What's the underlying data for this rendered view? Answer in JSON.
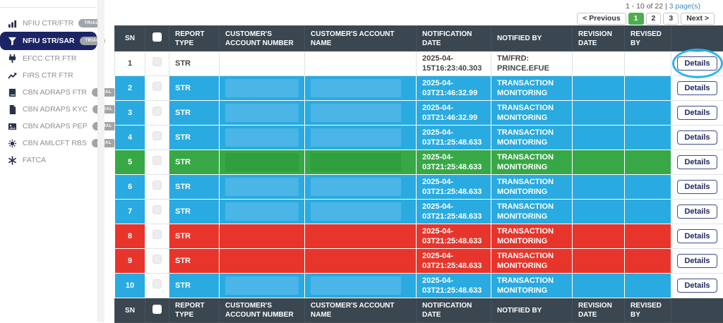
{
  "colors": {
    "header_bg": "#3a4650",
    "blue_row": "#29aae1",
    "blue_redaction": "#4ab5e6",
    "green_row": "#38a847",
    "green_redaction": "#2f9e3d",
    "red_row": "#e8352b",
    "nav_active_bg": "#1b2566",
    "trial_badge_bg": "#a1a5a8",
    "page_active_bg": "#4bae4f",
    "annotation_blue": "#2cb5ed"
  },
  "sidebar": {
    "trial_badge": "TRIAL",
    "items": [
      {
        "label": "NFIU CTR/FTR",
        "icon": "bar-chart-icon",
        "trial": true,
        "active": false
      },
      {
        "label": "NFIU STR/SAR",
        "icon": "filter-icon",
        "trial": true,
        "active": true
      },
      {
        "label": "EFCC CTR FTR",
        "icon": "plug-icon",
        "trial": false,
        "active": false
      },
      {
        "label": "FIRS CTR FTR",
        "icon": "trend-icon",
        "trial": false,
        "active": false
      },
      {
        "label": "CBN ADRAPS FTR",
        "icon": "book-icon",
        "trial": true,
        "active": false
      },
      {
        "label": "CBN ADRAPS KYC",
        "icon": "file-icon",
        "trial": true,
        "active": false
      },
      {
        "label": "CBN ADRAPS PEP",
        "icon": "image-icon",
        "trial": true,
        "active": false
      },
      {
        "label": "CBN AMLCFT RBS",
        "icon": "gear-icon",
        "trial": true,
        "active": false
      },
      {
        "label": "FATCA",
        "icon": "asterisk-icon",
        "trial": false,
        "active": false
      }
    ]
  },
  "pagination": {
    "summary_prefix": "1 - 10 of 22 | ",
    "pages_text": "3 page(s)",
    "prev_label": "< Previous",
    "pages": [
      "1",
      "2",
      "3"
    ],
    "active_page": "1",
    "next_label": "Next >"
  },
  "table": {
    "headers": [
      "SN",
      "",
      "REPORT TYPE",
      "CUSTOMER'S ACCOUNT NUMBER",
      "CUSTOMER'S ACCOUNT NAME",
      "NOTIFICATION DATE",
      "NOTIFIED BY",
      "REVISION DATE",
      "REVISED BY",
      ""
    ],
    "details_label": "Details",
    "rows": [
      {
        "sn": "1",
        "report_type": "STR",
        "account_number": "",
        "account_name": "",
        "notification_date": "2025-04-15T16:23:40.303",
        "notified_by": "TM/FRD: PRINCE.EFUE",
        "revision_date": "",
        "revised_by": "",
        "color": "white",
        "redacted": false,
        "annotated": true
      },
      {
        "sn": "2",
        "report_type": "STR",
        "account_number": "",
        "account_name": "",
        "notification_date": "2025-04-03T21:46:32.99",
        "notified_by": "TRANSACTION MONITORING",
        "revision_date": "",
        "revised_by": "",
        "color": "blue",
        "redacted": true,
        "annotated": false
      },
      {
        "sn": "3",
        "report_type": "STR",
        "account_number": "",
        "account_name": "",
        "notification_date": "2025-04-03T21:46:32.99",
        "notified_by": "TRANSACTION MONITORING",
        "revision_date": "",
        "revised_by": "",
        "color": "blue",
        "redacted": true,
        "annotated": false
      },
      {
        "sn": "4",
        "report_type": "STR",
        "account_number": "",
        "account_name": "",
        "notification_date": "2025-04-03T21:25:48.633",
        "notified_by": "TRANSACTION MONITORING",
        "revision_date": "",
        "revised_by": "",
        "color": "blue",
        "redacted": true,
        "annotated": false
      },
      {
        "sn": "5",
        "report_type": "STR",
        "account_number": "",
        "account_name": "",
        "notification_date": "2025-04-03T21:25:48.633",
        "notified_by": "TRANSACTION MONITORING",
        "revision_date": "",
        "revised_by": "",
        "color": "green",
        "redacted": true,
        "annotated": false
      },
      {
        "sn": "6",
        "report_type": "STR",
        "account_number": "",
        "account_name": "",
        "notification_date": "2025-04-03T21:25:48.633",
        "notified_by": "TRANSACTION MONITORING",
        "revision_date": "",
        "revised_by": "",
        "color": "blue",
        "redacted": true,
        "annotated": false
      },
      {
        "sn": "7",
        "report_type": "STR",
        "account_number": "",
        "account_name": "",
        "notification_date": "2025-04-03T21:25:48.633",
        "notified_by": "TRANSACTION MONITORING",
        "revision_date": "",
        "revised_by": "",
        "color": "blue",
        "redacted": true,
        "annotated": false
      },
      {
        "sn": "8",
        "report_type": "STR",
        "account_number": "",
        "account_name": "",
        "notification_date": "2025-04-03T21:25:48.633",
        "notified_by": "TRANSACTION MONITORING",
        "revision_date": "",
        "revised_by": "",
        "color": "red",
        "redacted": false,
        "annotated": false
      },
      {
        "sn": "9",
        "report_type": "STR",
        "account_number": "",
        "account_name": "",
        "notification_date": "2025-04-03T21:25:48.633",
        "notified_by": "TRANSACTION MONITORING",
        "revision_date": "",
        "revised_by": "",
        "color": "red",
        "redacted": false,
        "annotated": false
      },
      {
        "sn": "10",
        "report_type": "STR",
        "account_number": "",
        "account_name": "",
        "notification_date": "2025-04-03T21:25:48.633",
        "notified_by": "TRANSACTION MONITORING",
        "revision_date": "",
        "revised_by": "",
        "color": "blue",
        "redacted": true,
        "annotated": false
      }
    ]
  }
}
